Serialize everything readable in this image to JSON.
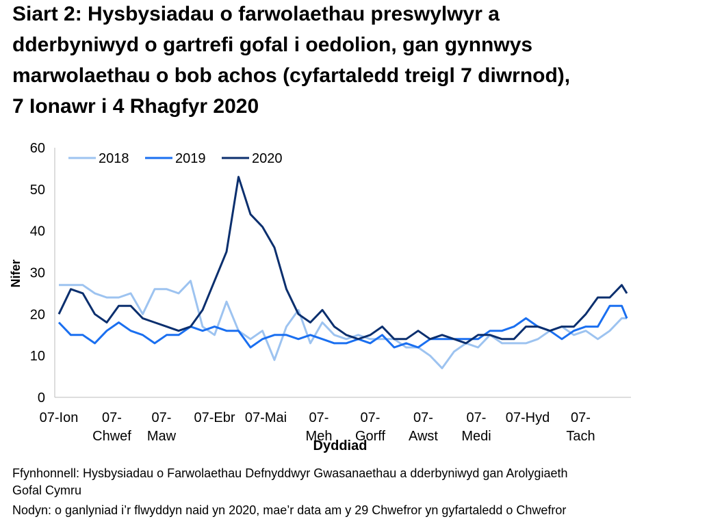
{
  "chart_data": {
    "type": "line",
    "title": "Siart 2: Hysbysiadau o farwolaethau preswylwyr a\ndderbyniwyd o gartrefi gofal i oedolion, gan gynnwys\nmarwolaethau o bob achos (cyfartaledd treigl 7 diwrnod),\n7 Ionawr i 4 Rhagfyr 2020",
    "x_label": "Dyddiad",
    "y_label": "Nifer",
    "source": "Ffynhonnell: Hysbysiadau o Farwolaethau Defnyddwyr Gwasanaethau a dderbyniwyd gan Arolygiaeth\nGofal Cymru",
    "note": "Nodyn: o ganlyniad i’r flwyddyn naid yn 2020, mae’r data am y 29 Chwefror yn gyfartaledd o Chwefror",
    "legend": "top-left",
    "grid": false,
    "x": [
      0,
      7,
      14,
      21,
      28,
      35,
      42,
      49,
      56,
      63,
      70,
      77,
      84,
      91,
      98,
      105,
      112,
      119,
      126,
      133,
      140,
      147,
      154,
      161,
      168,
      175,
      182,
      189,
      196,
      203,
      210,
      217,
      224,
      231,
      238,
      245,
      252,
      259,
      266,
      273,
      280,
      287,
      294,
      301,
      308,
      315,
      322,
      329,
      332
    ],
    "xlim": [
      0,
      332
    ],
    "xticks": [
      {
        "value": 0,
        "label": "07-Ion"
      },
      {
        "value": 31,
        "label": "07-\nChwef"
      },
      {
        "value": 60,
        "label": "07-\nMaw"
      },
      {
        "value": 91,
        "label": "07-Ebr"
      },
      {
        "value": 121,
        "label": "07-Mai"
      },
      {
        "value": 152,
        "label": "07-\nMeh"
      },
      {
        "value": 182,
        "label": "07-\nGorff"
      },
      {
        "value": 213,
        "label": "07-\nAwst"
      },
      {
        "value": 244,
        "label": "07-\nMedi"
      },
      {
        "value": 274,
        "label": "07-Hyd"
      },
      {
        "value": 305,
        "label": "07-\nTach"
      }
    ],
    "ylim": [
      0,
      60
    ],
    "yticks": [
      0,
      10,
      20,
      30,
      40,
      50,
      60
    ],
    "series": [
      {
        "name": "2018",
        "color": "#9dc3f0",
        "values": [
          27,
          27,
          27,
          25,
          24,
          24,
          25,
          20,
          26,
          26,
          25,
          28,
          17,
          15,
          23,
          16,
          14,
          16,
          9,
          17,
          21,
          13,
          18,
          15,
          14,
          15,
          14,
          14,
          14,
          12,
          12,
          10,
          7,
          11,
          13,
          12,
          15,
          13,
          13,
          13,
          14,
          16,
          17,
          15,
          16,
          14,
          16,
          19,
          19
        ]
      },
      {
        "name": "2019",
        "color": "#1a6ff0",
        "values": [
          18,
          15,
          15,
          13,
          16,
          18,
          16,
          15,
          13,
          15,
          15,
          17,
          16,
          17,
          16,
          16,
          12,
          14,
          15,
          15,
          14,
          15,
          14,
          13,
          13,
          14,
          13,
          15,
          12,
          13,
          12,
          14,
          14,
          14,
          14,
          14,
          16,
          16,
          17,
          19,
          17,
          16,
          14,
          16,
          17,
          17,
          22,
          22,
          19
        ]
      },
      {
        "name": "2020",
        "color": "#0b2f6e",
        "values": [
          20,
          26,
          25,
          20,
          18,
          22,
          22,
          19,
          18,
          17,
          16,
          17,
          21,
          28,
          35,
          53,
          44,
          41,
          36,
          26,
          20,
          18,
          21,
          17,
          15,
          14,
          15,
          17,
          14,
          14,
          16,
          14,
          15,
          14,
          13,
          15,
          15,
          14,
          14,
          17,
          17,
          16,
          17,
          17,
          20,
          24,
          24,
          27,
          25
        ]
      }
    ]
  }
}
